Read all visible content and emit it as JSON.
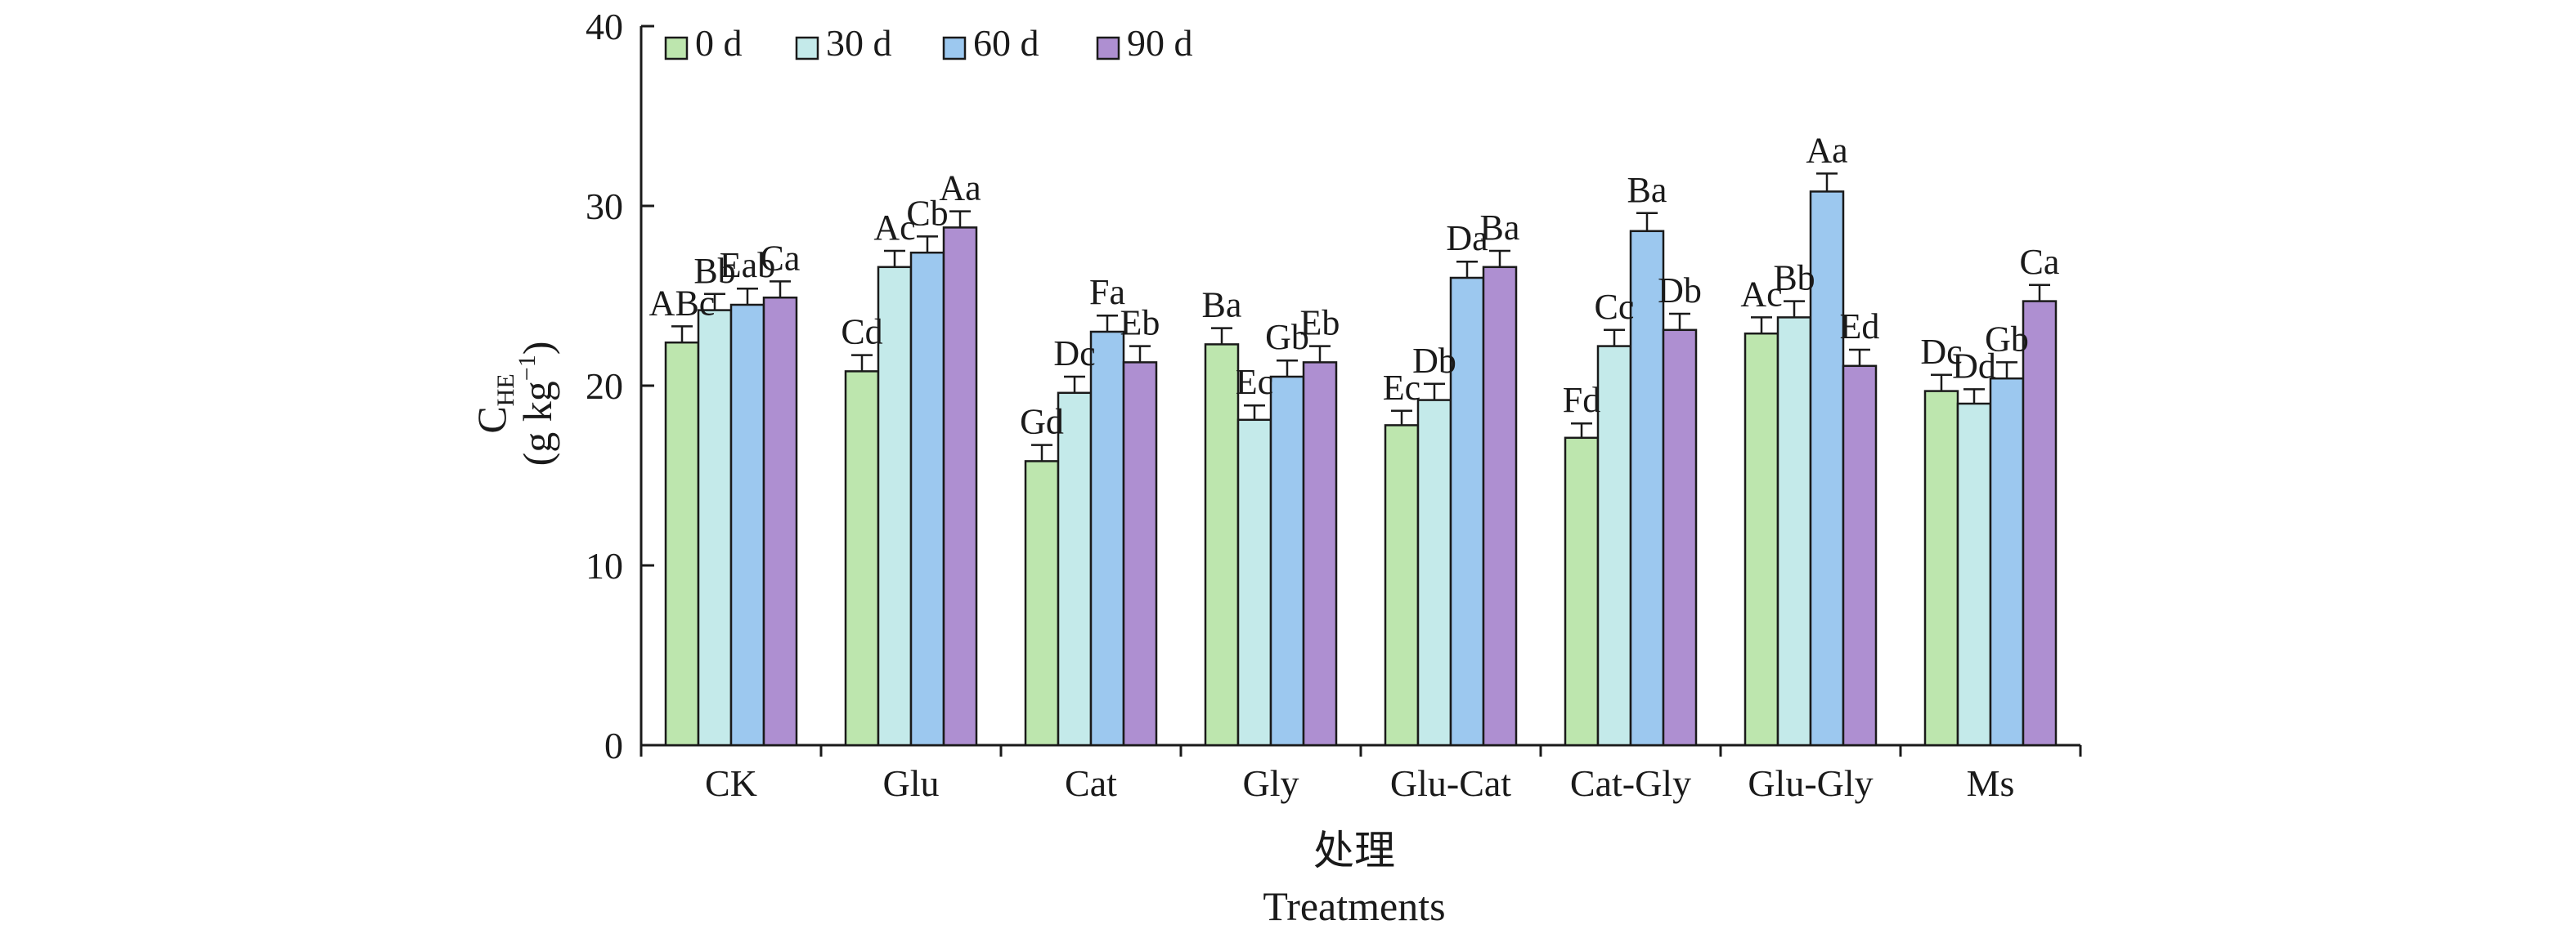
{
  "chart_data": {
    "type": "bar",
    "categories": [
      "CK",
      "Glu",
      "Cat",
      "Gly",
      "Glu-Cat",
      "Cat-Gly",
      "Glu-Gly",
      "Ms"
    ],
    "series": [
      {
        "name": "0 d",
        "color": "#bde6ae",
        "values": [
          22.4,
          20.8,
          15.8,
          22.3,
          17.8,
          17.1,
          22.9,
          19.7
        ],
        "errors": [
          0.9,
          0.9,
          0.9,
          0.9,
          0.8,
          0.8,
          0.9,
          0.9
        ],
        "sig": [
          "ABc",
          "Cd",
          "Gd",
          "Ba",
          "Ec",
          "Fd",
          "Ac",
          "Dc"
        ]
      },
      {
        "name": "30 d",
        "color": "#c4eaea",
        "values": [
          24.2,
          26.6,
          19.6,
          18.1,
          19.2,
          22.2,
          23.8,
          19.0
        ],
        "errors": [
          0.9,
          0.9,
          0.9,
          0.8,
          0.9,
          0.9,
          0.9,
          0.8
        ],
        "sig": [
          "Bb",
          "Ac",
          "Dc",
          "Ec",
          "Db",
          "Cc",
          "Bb",
          "Dd"
        ]
      },
      {
        "name": "60 d",
        "color": "#9cc8ef",
        "values": [
          24.5,
          27.4,
          23.0,
          20.5,
          26.0,
          28.6,
          30.8,
          20.4
        ],
        "errors": [
          0.9,
          0.9,
          0.9,
          0.9,
          0.9,
          1.0,
          1.0,
          0.9
        ],
        "sig": [
          "Eab",
          "Cb",
          "Fa",
          "Gb",
          "Da",
          "Ba",
          "Aa",
          "Gb"
        ]
      },
      {
        "name": "90 d",
        "color": "#ae8fd1",
        "values": [
          24.9,
          28.8,
          21.3,
          21.3,
          26.6,
          23.1,
          21.1,
          24.7
        ],
        "errors": [
          0.9,
          0.9,
          0.9,
          0.9,
          0.9,
          0.9,
          0.9,
          0.9
        ],
        "sig": [
          "Ca",
          "Aa",
          "Eb",
          "Eb",
          "Ba",
          "Db",
          "Ed",
          "Ca"
        ]
      }
    ],
    "ylim": [
      0,
      40
    ],
    "yticks": [
      0,
      10,
      20,
      30,
      40
    ],
    "ylabel_main": "C",
    "ylabel_sub": "HE",
    "ylabel_unit_prefix": "(g kg",
    "ylabel_unit_sup": "−1",
    "ylabel_unit_suffix": ")",
    "xlabel_cn": "处理",
    "xlabel_en": "Treatments",
    "legend_position": "top-left",
    "grid": false
  }
}
